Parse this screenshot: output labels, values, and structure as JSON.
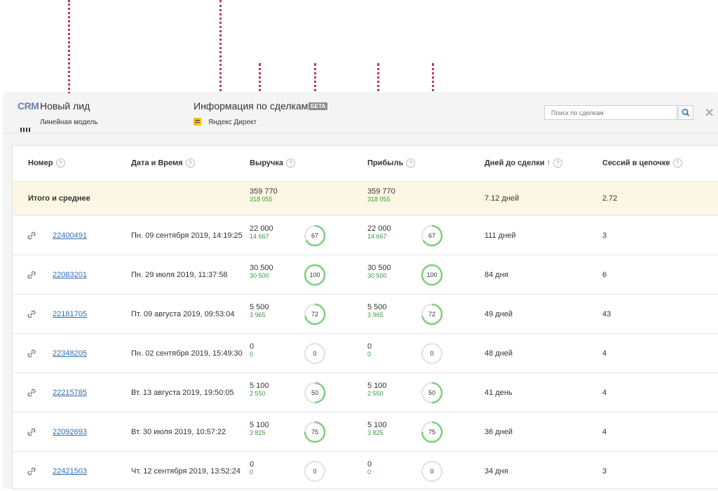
{
  "header": {
    "logo": "CRM",
    "lead_title": "Новый лид",
    "model_label": "Линейная модель",
    "deals_title": "Информация по сделкам",
    "beta_badge": "БЕТА",
    "source_label": "Яндекс Директ",
    "search_placeholder": "Поиск по сделкам",
    "close_glyph": "✕"
  },
  "table": {
    "columns": {
      "number": "Номер",
      "datetime": "Дата и Время",
      "revenue": "Выручка",
      "profit": "Прибыль",
      "days": "Дней до сделки",
      "sessions": "Сессий в цепочке"
    },
    "help_glyph": "?",
    "sort_glyph": "🡑",
    "totals": {
      "label": "Итого и среднее",
      "revenue": "359 770",
      "revenue_sub": "318 055",
      "profit": "359 770",
      "profit_sub": "318 055",
      "days": "7.12 дней",
      "sessions": "2.72"
    },
    "rows": [
      {
        "id": "22400491",
        "date": "Пн. 09 сентября 2019, 14:19:25",
        "revenue": "22 000",
        "revenue_sub": "14 667",
        "revenue_pct": 67,
        "profit": "22 000",
        "profit_sub": "14 667",
        "profit_pct": 67,
        "days": "111 дней",
        "sessions": "3"
      },
      {
        "id": "22083201",
        "date": "Пн. 29 июля 2019, 11:37:58",
        "revenue": "30 500",
        "revenue_sub": "30 500",
        "revenue_pct": 100,
        "profit": "30 500",
        "profit_sub": "30 500",
        "profit_pct": 100,
        "days": "84 дня",
        "sessions": "6"
      },
      {
        "id": "22181705",
        "date": "Пт. 09 августа 2019, 09:53:04",
        "revenue": "5 500",
        "revenue_sub": "3 965",
        "revenue_pct": 72,
        "profit": "5 500",
        "profit_sub": "3 965",
        "profit_pct": 72,
        "days": "49 дней",
        "sessions": "43"
      },
      {
        "id": "22348205",
        "date": "Пн. 02 сентября 2019, 15:49:30",
        "revenue": "0",
        "revenue_sub": "0",
        "revenue_pct": 0,
        "profit": "0",
        "profit_sub": "0",
        "profit_pct": 0,
        "days": "48 дней",
        "sessions": "4"
      },
      {
        "id": "22215785",
        "date": "Вт. 13 августа 2019, 19:50:05",
        "revenue": "5 100",
        "revenue_sub": "2 550",
        "revenue_pct": 50,
        "profit": "5 100",
        "profit_sub": "2 550",
        "profit_pct": 50,
        "days": "41 день",
        "sessions": "4"
      },
      {
        "id": "22092693",
        "date": "Вт. 30 июля 2019, 10:57:22",
        "revenue": "5 100",
        "revenue_sub": "3 825",
        "revenue_pct": 75,
        "profit": "5 100",
        "profit_sub": "3 825",
        "profit_pct": 75,
        "days": "36 дней",
        "sessions": "4"
      },
      {
        "id": "22421503",
        "date": "Чт. 12 сентября 2019, 13:52:24",
        "revenue": "0",
        "revenue_sub": "0",
        "revenue_pct": 0,
        "profit": "0",
        "profit_sub": "0",
        "profit_pct": 0,
        "days": "34 дня",
        "sessions": "3"
      }
    ]
  },
  "colors": {
    "accent": "#2f6fb4",
    "green": "#3b9a3b",
    "ring": "#7ed07e",
    "ring_track": "#e6e6e6",
    "arrow": "#b23a5f",
    "totals_bg": "#fcf6e4"
  }
}
